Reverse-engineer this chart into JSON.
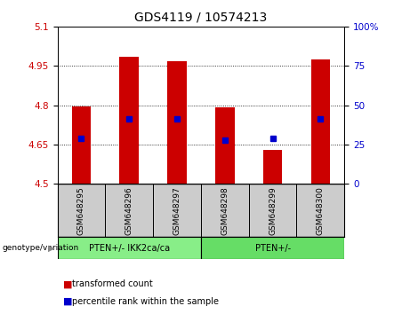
{
  "title": "GDS4119 / 10574213",
  "samples": [
    "GSM648295",
    "GSM648296",
    "GSM648297",
    "GSM648298",
    "GSM648299",
    "GSM648300"
  ],
  "bar_bottoms": [
    4.5,
    4.5,
    4.5,
    4.5,
    4.5,
    4.5
  ],
  "bar_tops": [
    4.795,
    4.985,
    4.968,
    4.793,
    4.628,
    4.976
  ],
  "percentile_values": [
    4.672,
    4.748,
    4.748,
    4.668,
    4.672,
    4.748
  ],
  "ylim": [
    4.5,
    5.1
  ],
  "yticks": [
    4.5,
    4.65,
    4.8,
    4.95,
    5.1
  ],
  "ytick_labels": [
    "4.5",
    "4.65",
    "4.8",
    "4.95",
    "5.1"
  ],
  "right_yticks": [
    0,
    25,
    50,
    75,
    100
  ],
  "right_ytick_labels": [
    "0",
    "25",
    "50",
    "75",
    "100%"
  ],
  "bar_color": "#cc0000",
  "percentile_color": "#0000cc",
  "grid_color": "#000000",
  "group1_label": "PTEN+/- IKK2ca/ca",
  "group2_label": "PTEN+/-",
  "group1_color": "#88ee88",
  "group2_color": "#66dd66",
  "legend_red_label": "transformed count",
  "legend_blue_label": "percentile rank within the sample",
  "genotype_label": "genotype/variation",
  "sample_bg": "#cccccc",
  "title_fontsize": 10,
  "tick_fontsize": 7.5,
  "bar_width": 0.4
}
